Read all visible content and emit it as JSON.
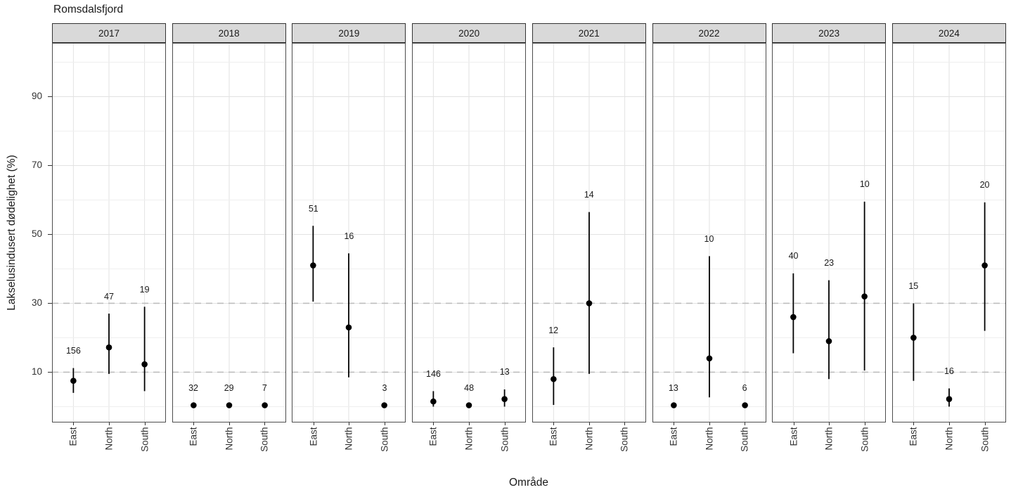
{
  "title": "Romsdalsfjord",
  "axes": {
    "x_title": "Område",
    "y_title": "Lakselusindusert dødelighet (%)",
    "y_ticks": [
      90,
      70,
      50,
      30,
      10
    ],
    "x_categories": [
      "East",
      "North",
      "South"
    ]
  },
  "style": {
    "strip_bg": "#d9d9d9",
    "panel_border": "#4d4d4d",
    "grid_major": "#e2e2e2",
    "grid_minor": "#efefef",
    "ref_line": "#bdbdbd",
    "mark_color": "#000000"
  },
  "chart_data": {
    "type": "scatter",
    "title": "Romsdalsfjord",
    "xlabel": "Område",
    "ylabel": "Lakselusindusert dødelighet (%)",
    "facet_variable": "year",
    "categories": [
      "East",
      "North",
      "South"
    ],
    "y_tick_breaks": [
      10,
      30,
      50,
      70,
      90
    ],
    "y_minor_breaks": [
      0,
      20,
      40,
      60,
      80,
      100
    ],
    "reference_lines_dashed": [
      10,
      30
    ],
    "ylim": [
      -4.6,
      105.6
    ],
    "legend": "none",
    "grid": true,
    "note": "points are estimates with vertical CI error bars; numeric label above each point is sample size n",
    "panels": [
      {
        "year": "2017",
        "points": [
          {
            "area": "East",
            "n": 156,
            "est": 7.5,
            "lo": 4.0,
            "hi": 11.2
          },
          {
            "area": "North",
            "n": 47,
            "est": 17.2,
            "lo": 9.5,
            "hi": 27.0
          },
          {
            "area": "South",
            "n": 19,
            "est": 12.3,
            "lo": 4.5,
            "hi": 29.0
          }
        ]
      },
      {
        "year": "2018",
        "points": [
          {
            "area": "East",
            "n": 32,
            "est": 0.4,
            "lo": null,
            "hi": null
          },
          {
            "area": "North",
            "n": 29,
            "est": 0.4,
            "lo": null,
            "hi": null
          },
          {
            "area": "South",
            "n": 7,
            "est": 0.4,
            "lo": null,
            "hi": null
          }
        ]
      },
      {
        "year": "2019",
        "points": [
          {
            "area": "East",
            "n": 51,
            "est": 41.0,
            "lo": 30.5,
            "hi": 52.5
          },
          {
            "area": "North",
            "n": 16,
            "est": 23.0,
            "lo": 8.5,
            "hi": 44.5
          },
          {
            "area": "South",
            "n": 3,
            "est": 0.4,
            "lo": null,
            "hi": null
          }
        ]
      },
      {
        "year": "2020",
        "points": [
          {
            "area": "East",
            "n": 146,
            "est": 1.5,
            "lo": 0.0,
            "hi": 4.5
          },
          {
            "area": "North",
            "n": 48,
            "est": 0.4,
            "lo": null,
            "hi": null
          },
          {
            "area": "South",
            "n": 13,
            "est": 2.2,
            "lo": 0.0,
            "hi": 5.0
          }
        ]
      },
      {
        "year": "2021",
        "points": [
          {
            "area": "East",
            "n": 12,
            "est": 8.0,
            "lo": 0.5,
            "hi": 17.2
          },
          {
            "area": "North",
            "n": 14,
            "est": 30.0,
            "lo": 9.5,
            "hi": 56.5
          }
        ]
      },
      {
        "year": "2022",
        "points": [
          {
            "area": "East",
            "n": 13,
            "est": 0.4,
            "lo": null,
            "hi": null
          },
          {
            "area": "North",
            "n": 10,
            "est": 14.0,
            "lo": 2.7,
            "hi": 43.7
          },
          {
            "area": "South",
            "n": 6,
            "est": 0.4,
            "lo": null,
            "hi": null
          }
        ]
      },
      {
        "year": "2023",
        "points": [
          {
            "area": "East",
            "n": 40,
            "est": 26.0,
            "lo": 15.5,
            "hi": 38.7
          },
          {
            "area": "North",
            "n": 23,
            "est": 19.0,
            "lo": 8.0,
            "hi": 36.7
          },
          {
            "area": "South",
            "n": 10,
            "est": 32.0,
            "lo": 10.5,
            "hi": 59.5
          }
        ]
      },
      {
        "year": "2024",
        "points": [
          {
            "area": "East",
            "n": 15,
            "est": 20.0,
            "lo": 7.5,
            "hi": 30.0
          },
          {
            "area": "North",
            "n": 16,
            "est": 2.2,
            "lo": 0.0,
            "hi": 5.3
          },
          {
            "area": "South",
            "n": 20,
            "est": 41.0,
            "lo": 22.0,
            "hi": 59.3
          }
        ]
      }
    ]
  }
}
